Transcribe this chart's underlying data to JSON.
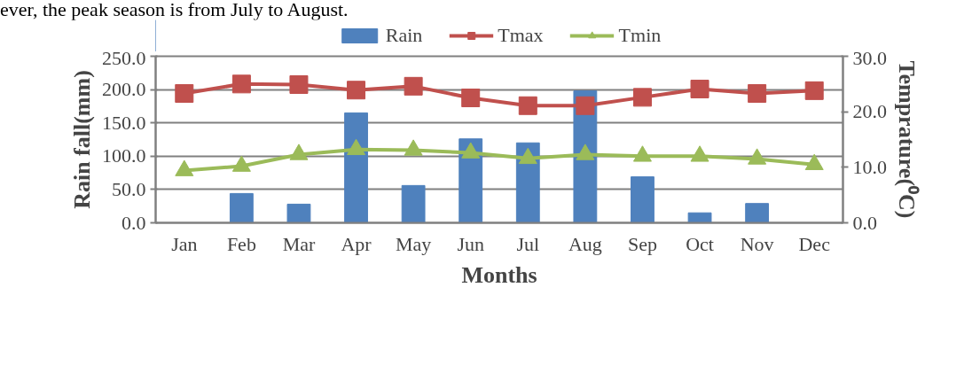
{
  "chart_data": {
    "type": "bar",
    "xlabel": "Months",
    "ylabel": "Rain fall(mm)",
    "y2label": "Temprature(⁰C)",
    "annotations": [
      "ever, the peak season is from July to August."
    ],
    "categories": [
      "Jan",
      "Feb",
      "Mar",
      "Apr",
      "May",
      "Jun",
      "Jul",
      "Aug",
      "Sep",
      "Oct",
      "Nov",
      "Dec"
    ],
    "series": [
      {
        "name": "Rain",
        "color": "#4f81bd",
        "values": [
          0,
          44,
          28,
          165,
          56,
          126,
          120,
          198,
          69,
          15,
          29,
          0
        ]
      },
      {
        "name": "Tmax",
        "type": "line",
        "axis": "y2",
        "marker": "square",
        "color": "#c0504d",
        "values": [
          23.3,
          25.0,
          24.9,
          23.9,
          24.6,
          22.5,
          21.1,
          21.1,
          22.6,
          24.1,
          23.3,
          23.8
        ]
      },
      {
        "name": "Tmin",
        "type": "line",
        "axis": "y2",
        "marker": "triangle",
        "color": "#9bbb59",
        "values": [
          9.4,
          10.2,
          12.3,
          13.2,
          13.1,
          12.6,
          11.6,
          12.3,
          12.0,
          12.0,
          11.5,
          10.5
        ]
      }
    ],
    "ylim": [
      0,
      250
    ],
    "yticks": [
      {
        "value": 0,
        "label": "0.0"
      },
      {
        "value": 50,
        "label": "50.0"
      },
      {
        "value": 100,
        "label": "100.0"
      },
      {
        "value": 150,
        "label": "150.0"
      },
      {
        "value": 200,
        "label": "200.0"
      },
      {
        "value": 250,
        "label": "250.0"
      }
    ],
    "y2lim": [
      0,
      30
    ],
    "y2ticks": [
      {
        "value": 0,
        "label": "0.0"
      },
      {
        "value": 10,
        "label": "10.0"
      },
      {
        "value": 20,
        "label": "20.0"
      },
      {
        "value": 30,
        "label": "30.0"
      }
    ],
    "grid": "y",
    "legend": "top",
    "line_style": "solid"
  }
}
